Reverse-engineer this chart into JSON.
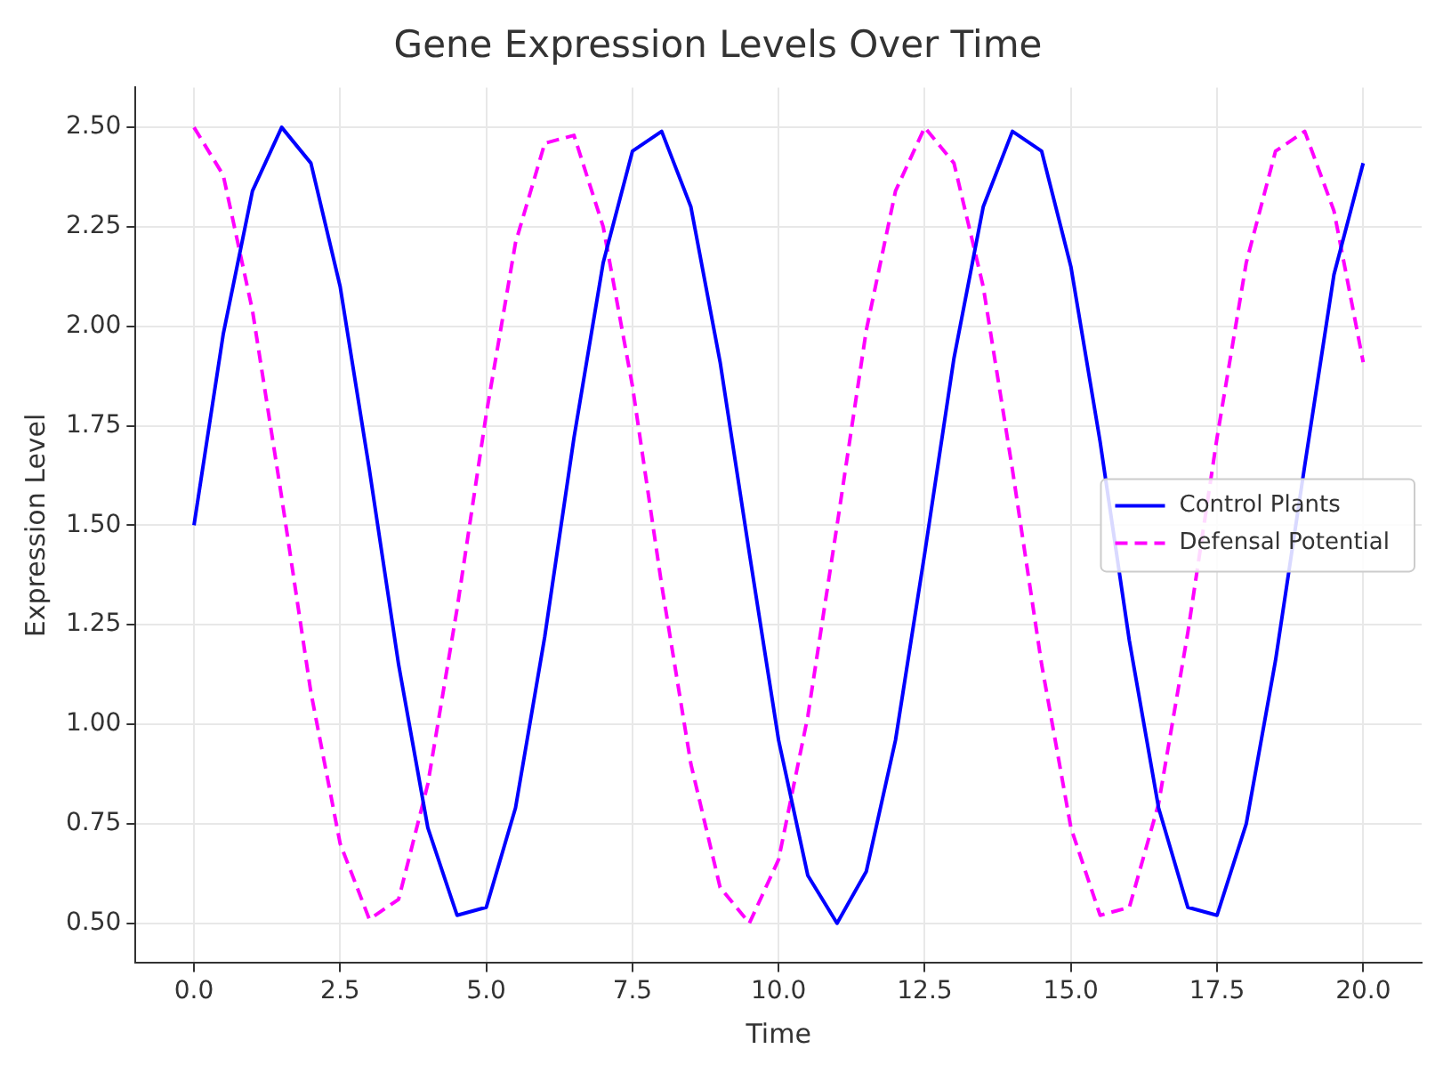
{
  "chart_data": {
    "type": "line",
    "title": "Gene Expression Levels Over Time",
    "xlabel": "Time",
    "ylabel": "Expression Level",
    "x": [
      0,
      0.5,
      1,
      1.5,
      2,
      2.5,
      3,
      3.5,
      4,
      4.5,
      5,
      5.5,
      6,
      6.5,
      7,
      7.5,
      8,
      8.5,
      9,
      9.5,
      10,
      10.5,
      11,
      11.5,
      12,
      12.5,
      13,
      13.5,
      14,
      14.5,
      15,
      15.5,
      16,
      16.5,
      17,
      17.5,
      18,
      18.5,
      19,
      19.5,
      20
    ],
    "series": [
      {
        "name": "Control Plants",
        "color": "#0000ff",
        "line_style": "solid",
        "values": [
          1.5,
          1.98,
          2.34,
          2.5,
          2.41,
          2.1,
          1.64,
          1.15,
          0.74,
          0.52,
          0.54,
          0.79,
          1.22,
          1.72,
          2.16,
          2.44,
          2.49,
          2.3,
          1.91,
          1.43,
          0.96,
          0.62,
          0.5,
          0.63,
          0.96,
          1.43,
          1.92,
          2.3,
          2.49,
          2.44,
          2.15,
          1.71,
          1.21,
          0.79,
          0.54,
          0.52,
          0.75,
          1.16,
          1.65,
          2.13,
          2.41
        ]
      },
      {
        "name": "Defensal Potential",
        "color": "#ff00ff",
        "line_style": "dashed",
        "values": [
          2.5,
          2.38,
          2.04,
          1.57,
          1.08,
          0.7,
          0.51,
          0.56,
          0.85,
          1.29,
          1.78,
          2.21,
          2.46,
          2.48,
          2.25,
          1.85,
          1.35,
          0.9,
          0.59,
          0.5,
          0.66,
          1.02,
          1.5,
          1.99,
          2.34,
          2.5,
          2.41,
          2.1,
          1.64,
          1.15,
          0.74,
          0.52,
          0.54,
          0.8,
          1.23,
          1.72,
          2.16,
          2.44,
          2.49,
          2.29,
          1.91
        ]
      }
    ],
    "xlim": [
      -1,
      21
    ],
    "xticks": [
      {
        "value": 0,
        "label": "0.0"
      },
      {
        "value": 2.5,
        "label": "2.5"
      },
      {
        "value": 5,
        "label": "5.0"
      },
      {
        "value": 7.5,
        "label": "7.5"
      },
      {
        "value": 10,
        "label": "10.0"
      },
      {
        "value": 12.5,
        "label": "12.5"
      },
      {
        "value": 15,
        "label": "15.0"
      },
      {
        "value": 17.5,
        "label": "17.5"
      },
      {
        "value": 20,
        "label": "20.0"
      }
    ],
    "ylim": [
      0.4,
      2.6
    ],
    "yticks": [
      {
        "value": 0.5,
        "label": "0.50"
      },
      {
        "value": 0.75,
        "label": "0.75"
      },
      {
        "value": 1,
        "label": "1.00"
      },
      {
        "value": 1.25,
        "label": "1.25"
      },
      {
        "value": 1.5,
        "label": "1.50"
      },
      {
        "value": 1.75,
        "label": "1.75"
      },
      {
        "value": 2,
        "label": "2.00"
      },
      {
        "value": 2.25,
        "label": "2.25"
      },
      {
        "value": 2.5,
        "label": "2.50"
      }
    ],
    "grid": true,
    "legend": "right",
    "marker": "none"
  }
}
